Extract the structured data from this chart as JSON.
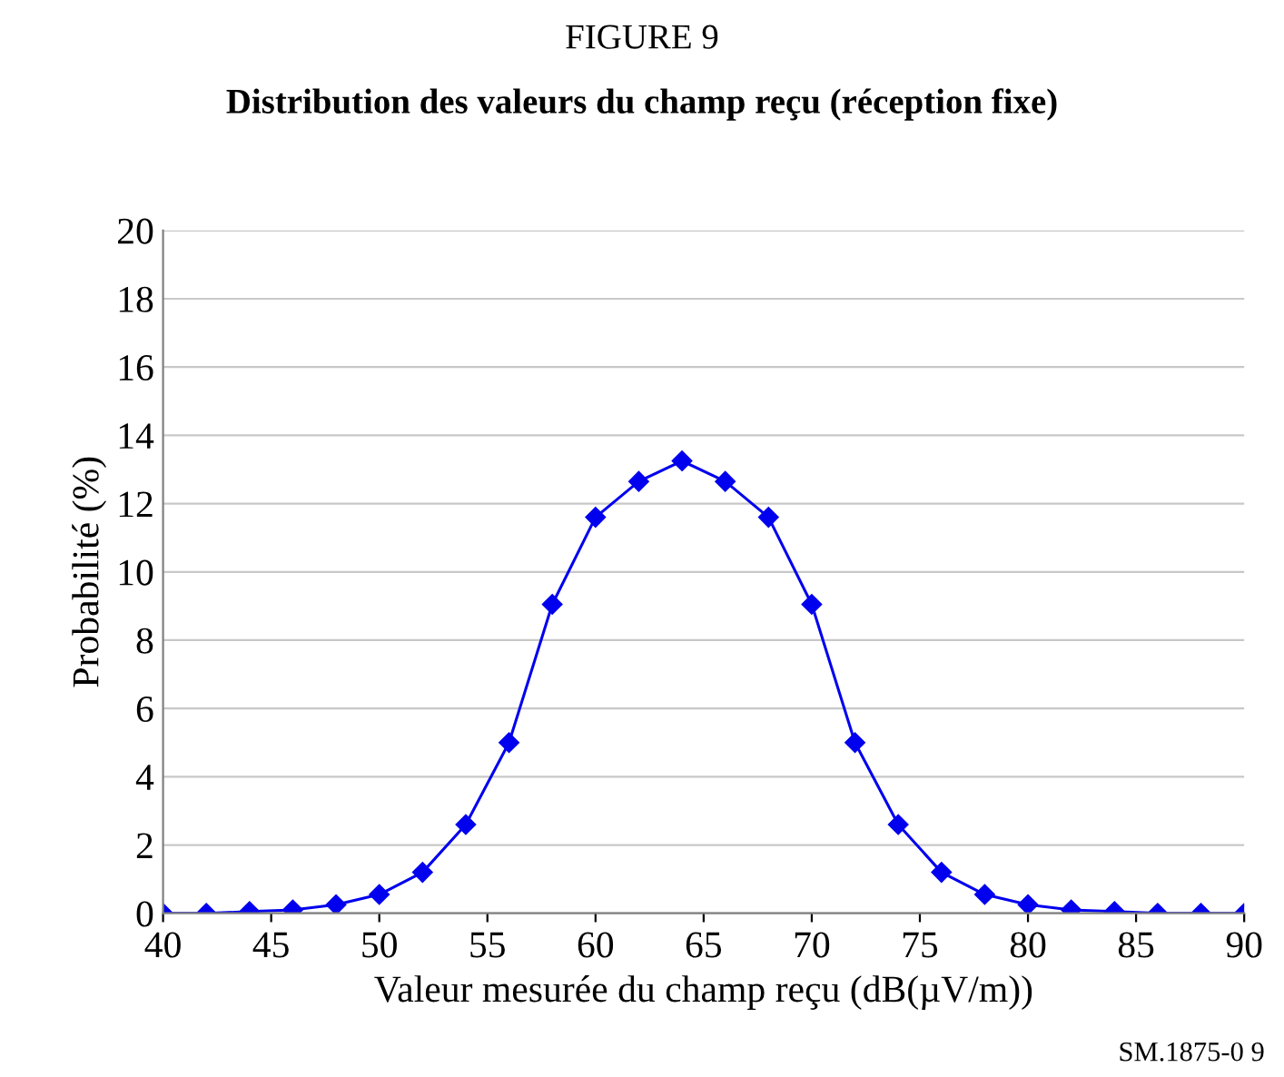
{
  "chart_data": {
    "type": "line",
    "title": "FIGURE 9",
    "subtitle": "Distribution des valeurs du champ reçu (réception fixe)",
    "xlabel": "Valeur mesurée du champ reçu (dB(µV/m))",
    "ylabel": "Probabilité (%)",
    "x": [
      40,
      42,
      44,
      46,
      48,
      50,
      52,
      54,
      56,
      58,
      60,
      62,
      64,
      66,
      68,
      70,
      72,
      74,
      76,
      78,
      80,
      82,
      84,
      86,
      88,
      90
    ],
    "series": [
      {
        "color": "#0000ee",
        "values": [
          0,
          0,
          0.05,
          0.1,
          0.25,
          0.55,
          1.2,
          2.6,
          5.0,
          9.05,
          11.6,
          12.65,
          13.25,
          12.65,
          11.6,
          9.05,
          5.0,
          2.6,
          1.2,
          0.55,
          0.25,
          0.1,
          0.05,
          0,
          0,
          0
        ]
      }
    ],
    "xlim": [
      40,
      90
    ],
    "xticks": [
      40,
      45,
      50,
      55,
      60,
      65,
      70,
      75,
      80,
      85,
      90
    ],
    "ylim": [
      0,
      20
    ],
    "yticks": [
      0,
      2,
      4,
      6,
      8,
      10,
      12,
      14,
      16,
      18,
      20
    ],
    "grid": "y",
    "marker": "diamond",
    "line_style": "solid",
    "legend": false,
    "annotations": [
      "SM.1875-0 9"
    ]
  }
}
